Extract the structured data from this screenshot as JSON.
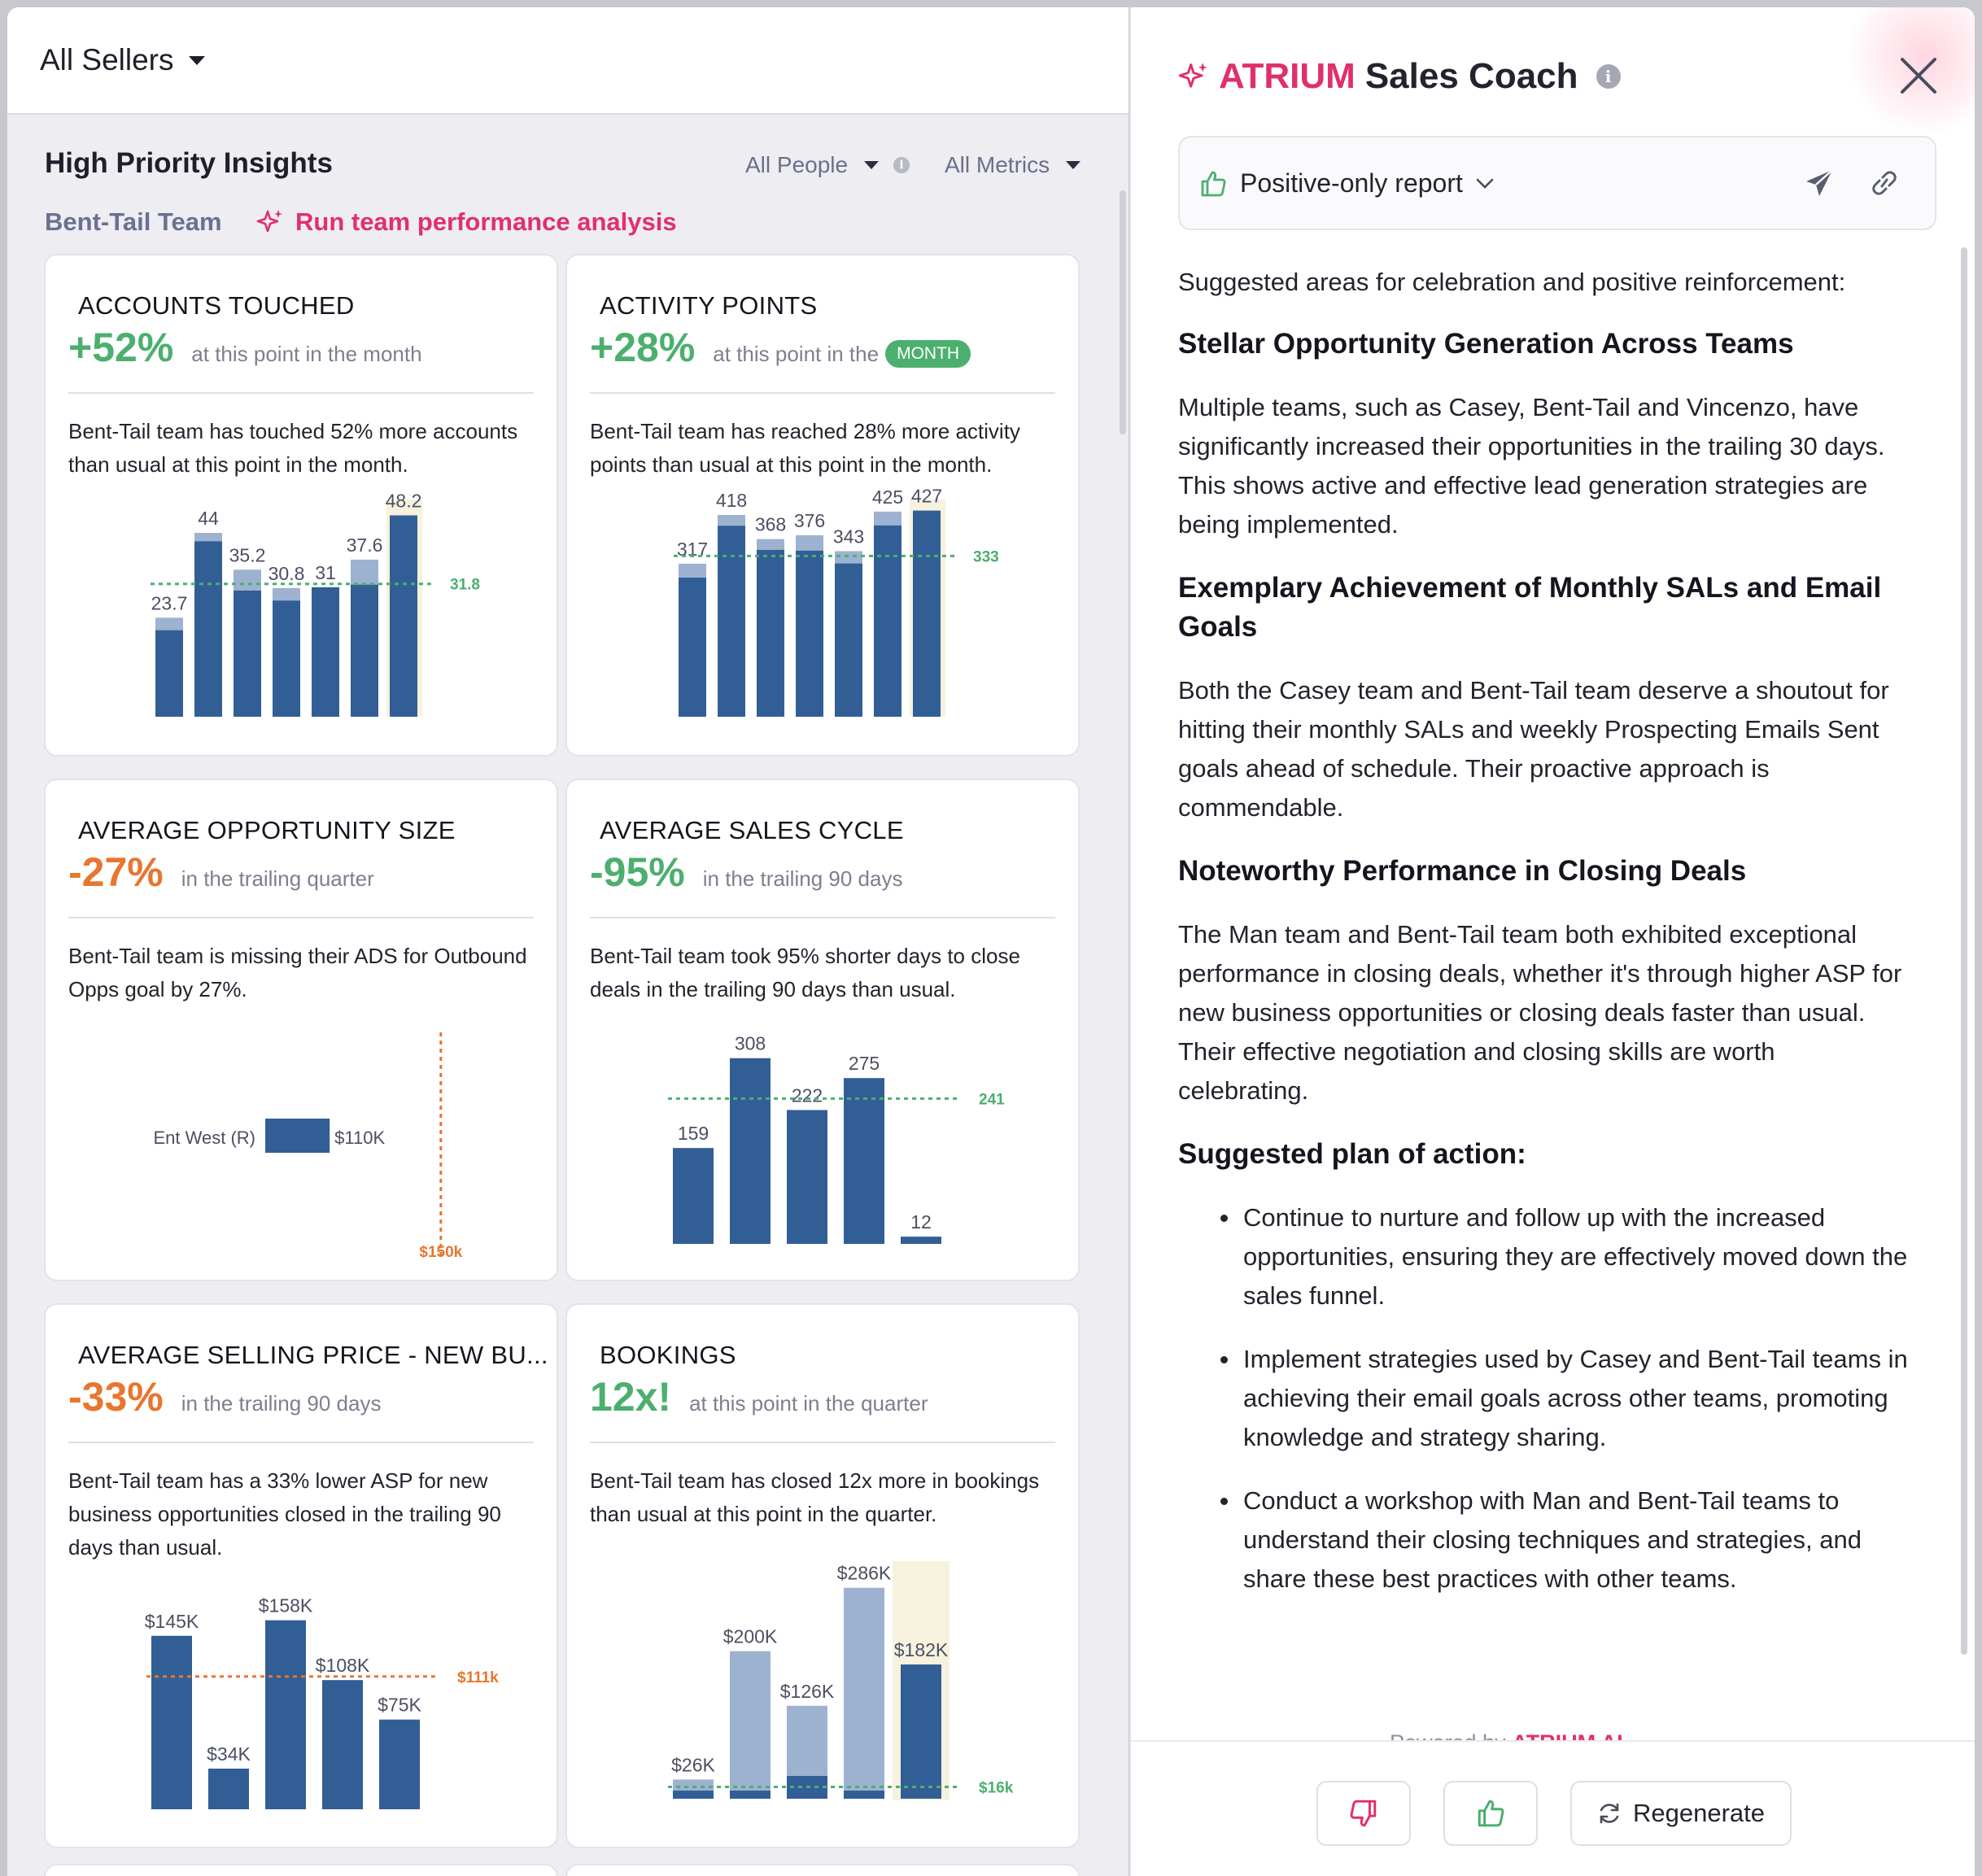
{
  "left": {
    "seller_dropdown": "All Sellers",
    "section_title": "High Priority Insights",
    "filters": {
      "people": "All People",
      "metrics": "All Metrics"
    },
    "team": "Bent-Tail Team",
    "run_analysis": "Run team performance analysis"
  },
  "cards": [
    {
      "title": "ACCOUNTS TOUCHED",
      "pct": "+52%",
      "context": "at this point in the month",
      "desc": "Bent-Tail team has touched 52% more accounts than usual at this point in the month."
    },
    {
      "title": "ACTIVITY POINTS",
      "pct": "+28%",
      "context": "at this point in the",
      "pill": "MONTH",
      "desc": "Bent-Tail team has reached 28% more activity points than usual at this point in the month."
    },
    {
      "title": "AVERAGE OPPORTUNITY SIZE",
      "pct": "-27%",
      "context": "in the trailing quarter",
      "desc": "Bent-Tail team is missing their ADS for Outbound Opps goal by 27%."
    },
    {
      "title": "AVERAGE SALES CYCLE",
      "pct": "-95%",
      "context": "in the trailing 90 days",
      "desc": "Bent-Tail team took 95% shorter days to close deals in the trailing 90 days than usual."
    },
    {
      "title": "AVERAGE SELLING PRICE - NEW BU...",
      "pct": "-33%",
      "context": "in the trailing 90 days",
      "desc": "Bent-Tail team has a 33% lower ASP for new business opportunities closed in the trailing 90 days than usual."
    },
    {
      "title": "BOOKINGS",
      "pct": "12x!",
      "context": "at this point in the quarter",
      "desc": "Bent-Tail team has closed 12x more in bookings than usual at this point in the quarter."
    }
  ],
  "chart_data": [
    {
      "type": "bar",
      "title": "ACCOUNTS TOUCHED",
      "values": [
        23.7,
        44,
        35.2,
        30.8,
        31,
        37.6,
        48.2
      ],
      "labels": [
        "23.7",
        "44",
        "35.2",
        "30.8",
        "31",
        "37.6",
        "48.2"
      ],
      "reference": 31.8,
      "reference_label": "31.8",
      "ylim": [
        0,
        52
      ]
    },
    {
      "type": "bar",
      "title": "ACTIVITY POINTS",
      "values": [
        317,
        418,
        368,
        376,
        343,
        425,
        427
      ],
      "labels": [
        "317",
        "418",
        "368",
        "376",
        "343",
        "425",
        "427"
      ],
      "reference": 333,
      "reference_label": "333",
      "ylim": [
        0,
        450
      ]
    },
    {
      "type": "bar",
      "title": "AVERAGE OPPORTUNITY SIZE",
      "orientation": "horizontal",
      "categories": [
        "Ent West (R)"
      ],
      "values": [
        110
      ],
      "labels": [
        "$110K"
      ],
      "reference": 150,
      "reference_label": "$150k",
      "xlim": [
        40,
        160
      ]
    },
    {
      "type": "bar",
      "title": "AVERAGE SALES CYCLE",
      "values": [
        159,
        308,
        222,
        275,
        12
      ],
      "labels": [
        "159",
        "308",
        "222",
        "275",
        "12"
      ],
      "reference": 241,
      "reference_label": "241",
      "ylim": [
        0,
        340
      ]
    },
    {
      "type": "bar",
      "title": "AVERAGE SELLING PRICE - NEW BU...",
      "values": [
        145,
        34,
        158,
        108,
        75
      ],
      "labels": [
        "$145K",
        "$34K",
        "$158K",
        "$108K",
        "$75K"
      ],
      "reference": 111,
      "reference_label": "$111k",
      "ylim": [
        0,
        170
      ]
    },
    {
      "type": "bar",
      "title": "BOOKINGS",
      "values": [
        26,
        200,
        126,
        286,
        182
      ],
      "labels": [
        "$26K",
        "$200K",
        "$126K",
        "$286K",
        "$182K"
      ],
      "reference": 16,
      "reference_label": "$16k",
      "ylim": [
        0,
        300
      ]
    }
  ],
  "coach": {
    "brand": "ATRIUM",
    "title_rest": "Sales Coach",
    "report_type": "Positive-only report",
    "intro": "Suggested areas for celebration and positive reinforcement:",
    "sections": [
      {
        "heading": "Stellar Opportunity Generation Across Teams",
        "body": "Multiple teams, such as Casey, Bent-Tail and Vincenzo, have significantly increased their opportunities in the trailing 30 days. This shows active and effective lead generation strategies are being implemented."
      },
      {
        "heading": "Exemplary Achievement of Monthly SALs and Email Goals",
        "body": "Both the Casey team and Bent-Tail team deserve a shoutout for hitting their monthly SALs and weekly Prospecting Emails Sent goals ahead of schedule. Their proactive approach is commendable."
      },
      {
        "heading": "Noteworthy Performance in Closing Deals",
        "body": "The Man team and Bent-Tail team both exhibited exceptional performance in closing deals, whether it's through higher ASP for new business opportunities or closing deals faster than usual. Their effective negotiation and closing skills are worth celebrating."
      }
    ],
    "plan_heading": "Suggested plan of action:",
    "plan": [
      "Continue to nurture and follow up with the increased opportunities, ensuring they are effectively moved down the sales funnel.",
      "Implement strategies used by Casey and Bent-Tail teams in achieving their email goals across other teams, promoting knowledge and strategy sharing.",
      "Conduct a workshop with Man and Bent-Tail teams to understand their closing techniques and strategies, and share these best practices with other teams."
    ],
    "powered_prefix": "Powered by",
    "powered_brand": "ATRIUM AI",
    "regenerate": "Regenerate"
  },
  "colors": {
    "bar": "#325e96",
    "bar_light": "#9db2d0",
    "green": "#4caf6e",
    "orange": "#e8762e",
    "pink": "#e0306b",
    "highlight": "#f7f2de"
  }
}
